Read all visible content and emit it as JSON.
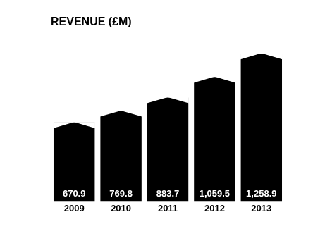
{
  "chart_data": {
    "type": "bar",
    "title": "REVENUE (£M)",
    "categories": [
      "2009",
      "2010",
      "2011",
      "2012",
      "2013"
    ],
    "values": [
      670.9,
      769.8,
      883.7,
      1059.5,
      1258.9
    ],
    "value_labels": [
      "670.9",
      "769.8",
      "883.7",
      "1,059.5",
      "1,258.9"
    ],
    "color": "#000000",
    "ylim": [
      0,
      1300
    ],
    "grid": false,
    "data_labels": true,
    "tick_labels": "x"
  }
}
